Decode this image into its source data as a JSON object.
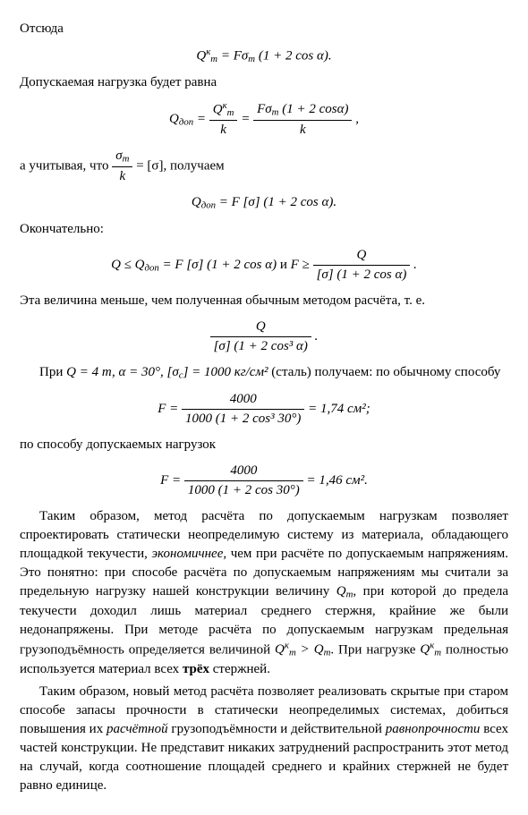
{
  "t1": "Отсюда",
  "f1_left": "Q",
  "f1_sup": "к",
  "f1_sub": "т",
  "f1_eq": " = Fσ",
  "f1_sub2": "т",
  "f1_right": " (1 + 2 cos α).",
  "t2": "Допускаемая нагрузка будет равна",
  "f2_Q": "Q",
  "f2_dop": "доп",
  "f2_eq": " = ",
  "f2_num1a": "Q",
  "f2_num1sup": "к",
  "f2_num1sub": "т",
  "f2_den1": "k",
  "f2_eq2": " = ",
  "f2_num2": "Fσ",
  "f2_num2sub": "т",
  "f2_num2r": " (1 + 2 cosα)",
  "f2_den2": "k",
  "f2_comma": " ,",
  "t3a": "а учитывая, что ",
  "f3_num": "σ",
  "f3_numsub": "т",
  "f3_den": "k",
  "t3b": " = [σ], получаем",
  "f4_l": "Q",
  "f4_sub": "доп",
  "f4_r": " = F [σ] (1 + 2 cos α).",
  "t4": "Окончательно:",
  "f5_a": "Q ≤ Q",
  "f5_sub": "доп",
  "f5_b": " = F [σ] (1 + 2 cos α)",
  "f5_and": "   и   ",
  "f5_c": "F ≥ ",
  "f5_num": "Q",
  "f5_den": "[σ] (1 + 2 cos α)",
  "f5_dot": " .",
  "t5": "Эта величина меньше, чем полученная обычным методом расчёта, т. е.",
  "f6_num": "Q",
  "f6_den": "[σ] (1 + 2 cos³ α)",
  "f6_dot": " .",
  "t6a": "При ",
  "t6b": "Q = 4 т,  α = 30°,  [σ",
  "t6bsub": "с",
  "t6c": "] = 1000 кг/см²",
  "t6d": " (сталь) получаем: по обычному способу",
  "f7_l": "F = ",
  "f7_num": "4000",
  "f7_den": "1000 (1 + 2 cos³ 30°)",
  "f7_r": " = 1,74 см²;",
  "t7": "по способу допускаемых нагрузок",
  "f8_l": "F = ",
  "f8_num": "4000",
  "f8_den": "1000 (1 + 2 cos 30°)",
  "f8_r": " = 1,46 см².",
  "p1a": "Таким образом, метод расчёта по допускаемым нагрузкам позволяет спроектировать статически неопределимую систему из материала, обладающего площадкой текучести, ",
  "p1b": "экономичнее,",
  "p1c": " чем при расчёте по допускаемым напряжениям. Это понятно: при способе расчёта по допускаемым напряжениям мы считали за предельную нагрузку нашей конструкции величину ",
  "p1d": "Q",
  "p1dsub": "т",
  "p1e": ", при которой до предела текучести доходил лишь материал среднего стержня, крайние же были недонапряжены. При методе расчёта по допускаемым нагрузкам предельная грузоподъёмность определяется величиной ",
  "p1f": "Q",
  "p1fsup": "к",
  "p1fsub": "т",
  "p1g": " > Q",
  "p1gsub": "т",
  "p1h": ". При нагрузке ",
  "p1i": "Q",
  "p1isup": "к",
  "p1isub": "т",
  "p1j": " полностью используется материал всех ",
  "p1k": "трёх",
  "p1l": " стержней.",
  "p2a": "Таким образом, новый метод расчёта позволяет реализовать скрытые при старом способе запасы прочности в статически неопределимых системах, добиться повышения их ",
  "p2b": "расчётной",
  "p2c": " грузоподъёмности и действительной ",
  "p2d": "равнопрочности",
  "p2e": " всех частей конструкции. Не представит никаких затруднений распространить этот метод на случай, когда соотношение площадей среднего и крайних стержней не будет равно единице."
}
